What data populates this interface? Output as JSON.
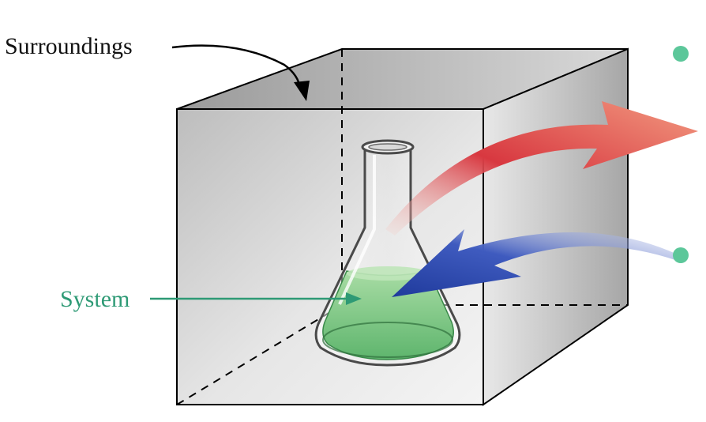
{
  "labels": {
    "surroundings": "Surroundings",
    "system": "System"
  },
  "colors": {
    "system_label": "#2e9a75",
    "heat_out_arrow": "#d8383e",
    "heat_in_arrow": "#2b4bb0",
    "liquid": "#6dc07a",
    "bullet": "#5cc79a",
    "box_face": "#c8c8c8"
  },
  "icons": {
    "flask": "erlenmeyer-flask-icon",
    "bullets": "circle-bullet-icon"
  }
}
